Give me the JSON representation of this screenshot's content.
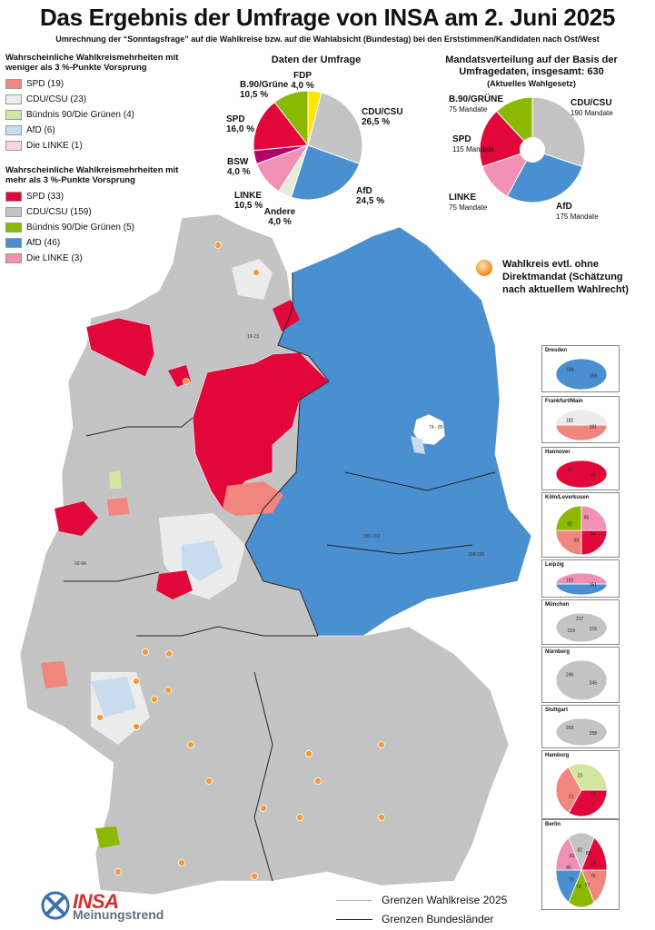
{
  "title": "Das Ergebnis der Umfrage von INSA am 2. Juni 2025",
  "subtitle": "Umrechnung der “Sonntagsfrage” auf die Wahlkreise bzw. auf die Wahlabsicht (Bundestag) bei den Erststimmen/Kandidaten nach Ost/West",
  "colors": {
    "spd_strong": "#e2073b",
    "spd_weak": "#f0867d",
    "cdu_strong": "#c4c4c4",
    "cdu_weak": "#ececec",
    "gruene_strong": "#8bb800",
    "gruene_weak": "#d2e6a0",
    "afd_strong": "#4a8fcf",
    "afd_weak": "#c8dcf0",
    "linke_strong": "#f090b4",
    "linke_weak": "#f8d4e0",
    "fdp": "#ffe600",
    "bsw": "#b40068",
    "andere": "#e4ecd8"
  },
  "legend": {
    "weak_heading": "Wahrscheinliche Wahlkreismehrheiten mit weniger als 3 %-Punkte Vorsprung",
    "weak_items": [
      {
        "label": "SPD (19)",
        "color": "#f0867d"
      },
      {
        "label": "CDU/CSU (23)",
        "color": "#ececec"
      },
      {
        "label": "Bündnis 90/Die Grünen (4)",
        "color": "#d2e6a0"
      },
      {
        "label": "AfD (6)",
        "color": "#c8dcf0"
      },
      {
        "label": "Die LINKE (1)",
        "color": "#f8d4e0"
      }
    ],
    "strong_heading": "Wahrscheinliche Wahlkreismehrheiten mit mehr als 3 %-Punkte Vorsprung",
    "strong_items": [
      {
        "label": "SPD (33)",
        "color": "#e2073b"
      },
      {
        "label": "CDU/CSU (159)",
        "color": "#c4c4c4"
      },
      {
        "label": "Bündnis 90/Die Grünen (5)",
        "color": "#8bb800"
      },
      {
        "label": "AfD (46)",
        "color": "#4a8fcf"
      },
      {
        "label": "Die LINKE (3)",
        "color": "#f090b4"
      }
    ]
  },
  "poll": {
    "title": "Daten der Umfrage",
    "slices": [
      {
        "party": "FDP",
        "value": 4.0,
        "text": "4,0 %",
        "color": "#ffe600"
      },
      {
        "party": "CDU/CSU",
        "value": 26.5,
        "text": "26,5 %",
        "color": "#c4c4c4"
      },
      {
        "party": "AfD",
        "value": 24.5,
        "text": "24,5 %",
        "color": "#4a8fcf"
      },
      {
        "party": "Andere",
        "value": 4.0,
        "text": "4,0 %",
        "color": "#e4ecd8"
      },
      {
        "party": "LINKE",
        "value": 10.5,
        "text": "10,5 %",
        "color": "#f090b4"
      },
      {
        "party": "BSW",
        "value": 4.0,
        "text": "4,0 %",
        "color": "#b40068"
      },
      {
        "party": "SPD",
        "value": 16.0,
        "text": "16,0 %",
        "color": "#e2073b"
      },
      {
        "party": "B.90/Grüne",
        "value": 10.5,
        "text": "10,5 %",
        "color": "#8bb800"
      }
    ]
  },
  "seats": {
    "title": "Mandatsverteilung auf der Basis der Umfragedaten, insgesamt: 630",
    "subtitle": "(Aktuelles Wahlgesetz)",
    "slices": [
      {
        "party": "CDU/CSU",
        "value": 190,
        "text": "190 Mandate",
        "color": "#c4c4c4"
      },
      {
        "party": "AfD",
        "value": 175,
        "text": "175 Mandate",
        "color": "#4a8fcf"
      },
      {
        "party": "LINKE",
        "value": 75,
        "text": "75 Mandate",
        "color": "#f090b4"
      },
      {
        "party": "SPD",
        "value": 115,
        "text": "115 Mandate",
        "color": "#e2073b"
      },
      {
        "party": "B.90/GRÜNE",
        "value": 75,
        "text": "75 Mandate",
        "color": "#8bb800"
      }
    ]
  },
  "note": "Wahlkreis evtl. ohne Direktmandat (Schätzung nach aktuellem Wahlrecht)",
  "map": {
    "cities": [
      {
        "name": "Dresden",
        "labels": [
          "159",
          "158"
        ]
      },
      {
        "name": "Frankfurt/Main",
        "labels": [
          "181",
          "182"
        ]
      },
      {
        "name": "Hannover",
        "labels": [
          "41",
          "42"
        ]
      },
      {
        "name": "Köln/Leverkusen",
        "labels": [
          "54",
          "93",
          "92",
          "95"
        ]
      },
      {
        "name": "Leipzig",
        "labels": [
          "151",
          "152"
        ]
      },
      {
        "name": "München",
        "labels": [
          "216",
          "219",
          "217"
        ]
      },
      {
        "name": "Nürnberg",
        "labels": [
          "245",
          "246"
        ]
      },
      {
        "name": "Stuttgart",
        "labels": [
          "258",
          "259"
        ]
      },
      {
        "name": "Hamburg",
        "labels": [
          "19",
          "21",
          "23"
        ]
      },
      {
        "name": "Berlin",
        "labels": [
          "76",
          "77",
          "78",
          "79",
          "80",
          "81",
          "82",
          "83",
          "84"
        ]
      }
    ],
    "region_labels": [
      "19-23",
      "74 - 85",
      "150-152",
      "158/159",
      "92-94"
    ]
  },
  "borders": {
    "wahlkreise": "Grenzen Wahlkreise 2025",
    "bundeslaender": "Grenzen Bundesländer"
  },
  "logo": {
    "brand": "INSA",
    "tagline": "Meinungstrend"
  }
}
